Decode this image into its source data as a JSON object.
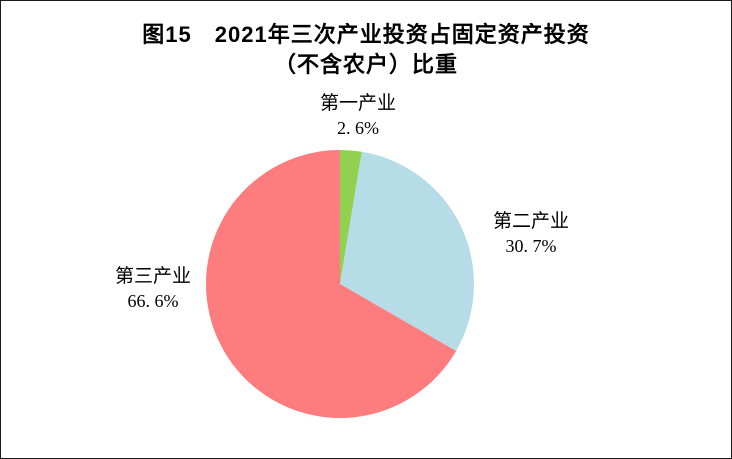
{
  "title": {
    "line1": "图15　2021年三次产业投资占固定资产投资",
    "line2": "（不含农户）比重"
  },
  "chart_data": {
    "type": "pie",
    "title": "图15 2021年三次产业投资占固定资产投资（不含农户）比重",
    "categories": [
      "第一产业",
      "第二产业",
      "第三产业"
    ],
    "values": [
      2.6,
      30.7,
      66.6
    ],
    "unit": "%",
    "colors": [
      "#92D050",
      "#B6DCE7",
      "#FD7C7E"
    ],
    "ids": [
      "primary-industry",
      "secondary-industry",
      "tertiary-industry"
    ],
    "start_angle_deg": 0,
    "direction": "clockwise",
    "legend": "none",
    "label_position": "outside"
  },
  "slice_labels": [
    {
      "name": "第一产业",
      "pct": "2. 6%"
    },
    {
      "name": "第二产业",
      "pct": "30. 7%"
    },
    {
      "name": "第三产业",
      "pct": "66. 6%"
    }
  ]
}
